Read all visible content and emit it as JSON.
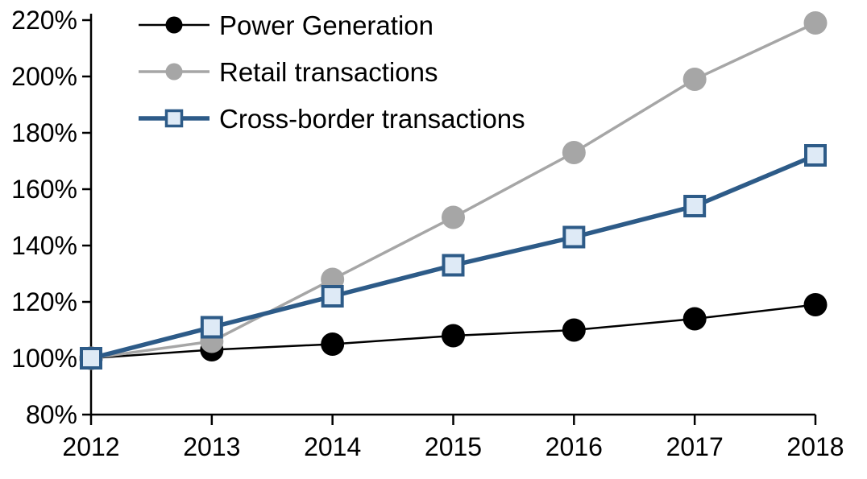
{
  "chart_data": {
    "type": "line",
    "title": "",
    "xlabel": "",
    "ylabel": "",
    "grid": false,
    "legend_position": "top-left-inside",
    "x": [
      2012,
      2013,
      2014,
      2015,
      2016,
      2017,
      2018
    ],
    "xtick_labels": [
      "2012",
      "2013",
      "2014",
      "2015",
      "2016",
      "2017",
      "2018"
    ],
    "ylim": [
      80,
      220
    ],
    "ytick_step": 20,
    "ytick_labels": [
      "80%",
      "100%",
      "120%",
      "140%",
      "160%",
      "180%",
      "200%",
      "220%"
    ],
    "axis_color": "#000000",
    "series": [
      {
        "name": "Power Generation",
        "values": [
          100,
          103,
          105,
          108,
          110,
          114,
          119
        ],
        "line_color": "#000000",
        "line_width": 2.5,
        "marker": "circle",
        "marker_fill": "#000000",
        "marker_stroke": "none"
      },
      {
        "name": "Retail transactions",
        "values": [
          100,
          106,
          128,
          150,
          173,
          199,
          219
        ],
        "line_color": "#A6A6A6",
        "line_width": 3.5,
        "marker": "circle",
        "marker_fill": "#A6A6A6",
        "marker_stroke": "none"
      },
      {
        "name": "Cross-border transactions",
        "values": [
          100,
          111,
          122,
          133,
          143,
          154,
          172
        ],
        "line_color": "#2D5B88",
        "line_width": 5.5,
        "marker": "square",
        "marker_fill": "#DEEAF6",
        "marker_stroke": "#2D5B88"
      }
    ]
  }
}
